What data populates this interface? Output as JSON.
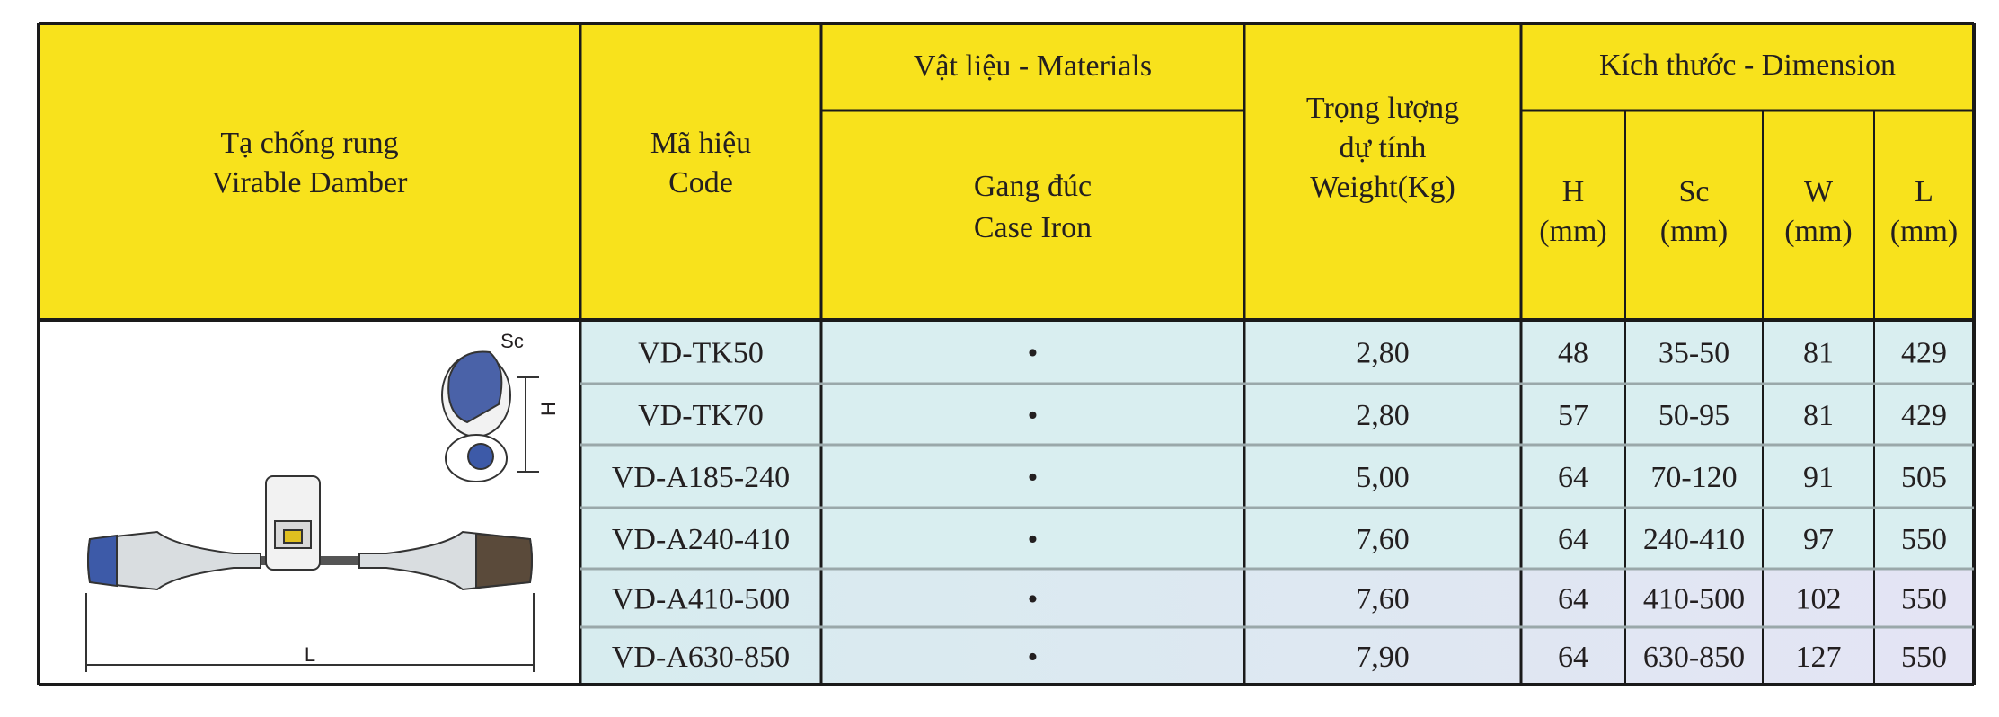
{
  "header": {
    "damper": [
      "Tạ chống rung",
      "Virable Damber"
    ],
    "code": [
      "Mã hiệu",
      "Code"
    ],
    "materials": "Vật liệu - Materials",
    "material_sub": [
      "Gang đúc",
      "Case Iron"
    ],
    "weight": [
      "Trọng lượng",
      "dự tính",
      "Weight(Kg)"
    ],
    "dimension": "Kích thước - Dimension",
    "dims": [
      [
        "H",
        "(mm)"
      ],
      [
        "Sc",
        "(mm)"
      ],
      [
        "W",
        "(mm)"
      ],
      [
        "L",
        "(mm)"
      ]
    ]
  },
  "image": {
    "labels": [
      "Sc",
      "H",
      "L"
    ]
  },
  "rows": [
    [
      "VD-TK50",
      "•",
      "2,80",
      "48",
      "35-50",
      "81",
      "429"
    ],
    [
      "VD-TK70",
      "•",
      "2,80",
      "57",
      "50-95",
      "81",
      "429"
    ],
    [
      "VD-A185-240",
      "•",
      "5,00",
      "64",
      "70-120",
      "91",
      "505"
    ],
    [
      "VD-A240-410",
      "•",
      "7,60",
      "64",
      "240-410",
      "97",
      "550"
    ],
    [
      "VD-A410-500",
      "•",
      "7,60",
      "64",
      "410-500",
      "102",
      "550"
    ],
    [
      "VD-A630-850",
      "•",
      "7,90",
      "64",
      "630-850",
      "127",
      "550"
    ]
  ]
}
